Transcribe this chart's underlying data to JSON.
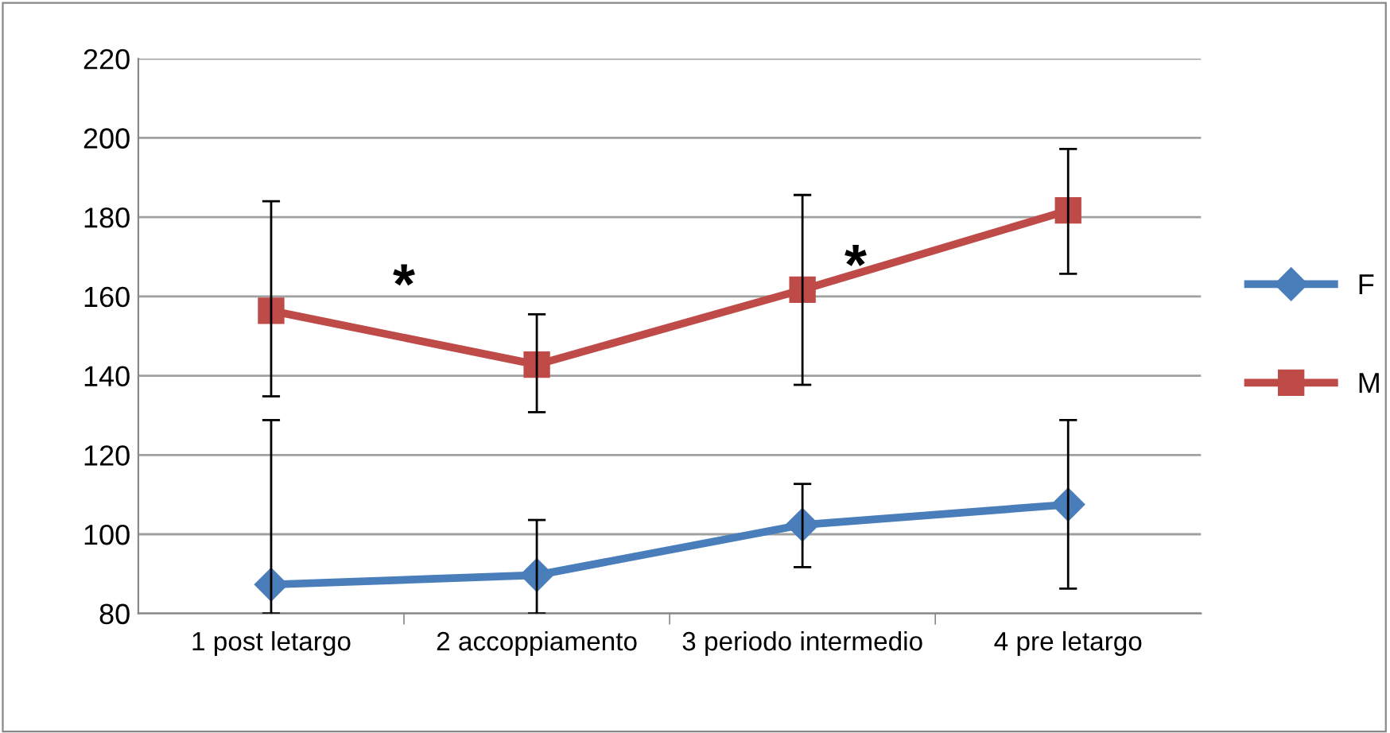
{
  "chart_data": {
    "type": "line",
    "categories": [
      "1 post letargo",
      "2 accoppiamento",
      "3 periodo intermedio",
      "4 pre letargo"
    ],
    "series": [
      {
        "name": "F",
        "color": "#4a7ebb",
        "marker": "diamond",
        "values": [
          87.3,
          89.7,
          102.4,
          107.5
        ],
        "errors": [
          [
            80,
            128.8
          ],
          [
            80,
            103.6
          ],
          [
            91.7,
            112.7
          ],
          [
            86.3,
            128.8
          ]
        ]
      },
      {
        "name": "M",
        "color": "#be4b48",
        "marker": "square",
        "values": [
          156.4,
          142.8,
          161.7,
          181.7
        ],
        "errors": [
          [
            134.8,
            184
          ],
          [
            130.8,
            155.5
          ],
          [
            137.7,
            185.6
          ],
          [
            165.7,
            197.2
          ]
        ]
      }
    ],
    "ylim": [
      80,
      220
    ],
    "yticks": [
      80,
      100,
      120,
      140,
      160,
      180,
      200,
      220
    ],
    "grid": "y",
    "legend": "right",
    "line_style": "solid",
    "annotations": [
      "*",
      "*"
    ]
  }
}
